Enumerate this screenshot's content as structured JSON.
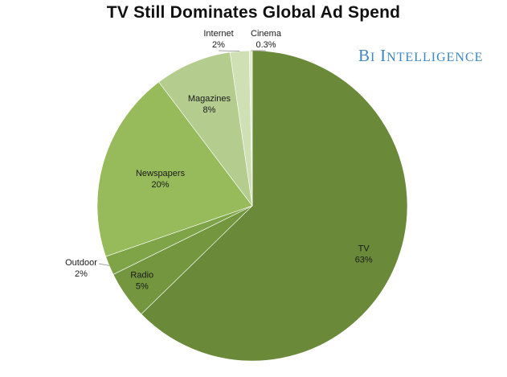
{
  "chart_data": {
    "type": "pie",
    "title": "TV Still Dominates Global Ad Spend",
    "slices": [
      {
        "label": "TV",
        "value_label": "63%",
        "value": 62.7,
        "color": "#6a8a3a"
      },
      {
        "label": "Radio",
        "value_label": "5%",
        "value": 5,
        "color": "#73963f"
      },
      {
        "label": "Outdoor",
        "value_label": "2%",
        "value": 2,
        "color": "#7fa447"
      },
      {
        "label": "Newspapers",
        "value_label": "20%",
        "value": 20,
        "color": "#97bb5b"
      },
      {
        "label": "Magazines",
        "value_label": "8%",
        "value": 8,
        "color": "#b4cd8e"
      },
      {
        "label": "Internet",
        "value_label": "2%",
        "value": 2,
        "color": "#cfe0b4"
      },
      {
        "label": "Cinema",
        "value_label": "0.3%",
        "value": 0.3,
        "color": "#e3edd3"
      }
    ],
    "start": "12 o'clock",
    "direction": "clockwise"
  },
  "brand": {
    "logo_text": "BI INTELLIGENCE"
  }
}
